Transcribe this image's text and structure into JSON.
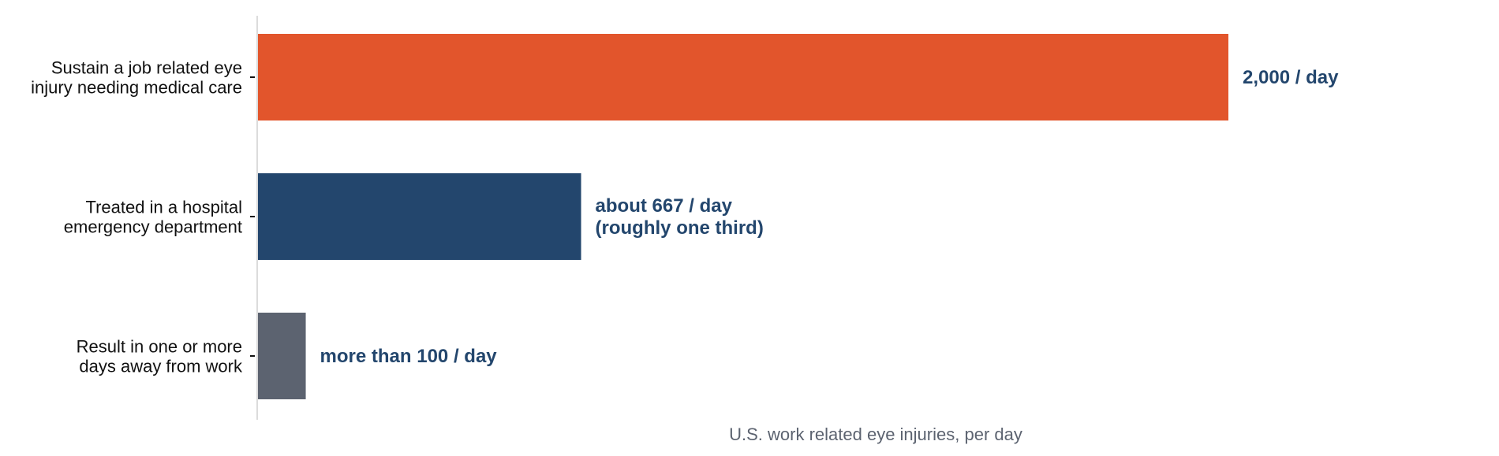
{
  "chart_data": {
    "type": "bar",
    "orientation": "horizontal",
    "categories": [
      [
        "Sustain a job related eye",
        "injury needing medical care"
      ],
      [
        "Treated in a hospital",
        "emergency department"
      ],
      [
        "Result in one or more",
        "days away from work"
      ]
    ],
    "values": [
      2000,
      667,
      100
    ],
    "value_labels": [
      [
        "2,000 / day"
      ],
      [
        "about 667 / day",
        "(roughly one third)"
      ],
      [
        "more than 100 / day"
      ]
    ],
    "colors": [
      "#E2552C",
      "#23466D",
      "#5C6370"
    ],
    "label_color": "#23466D",
    "xlabel": "U.S. work related eye injuries, per day",
    "xlabel_color": "#5C6370",
    "xlim": [
      0,
      2000
    ],
    "grid": false
  }
}
